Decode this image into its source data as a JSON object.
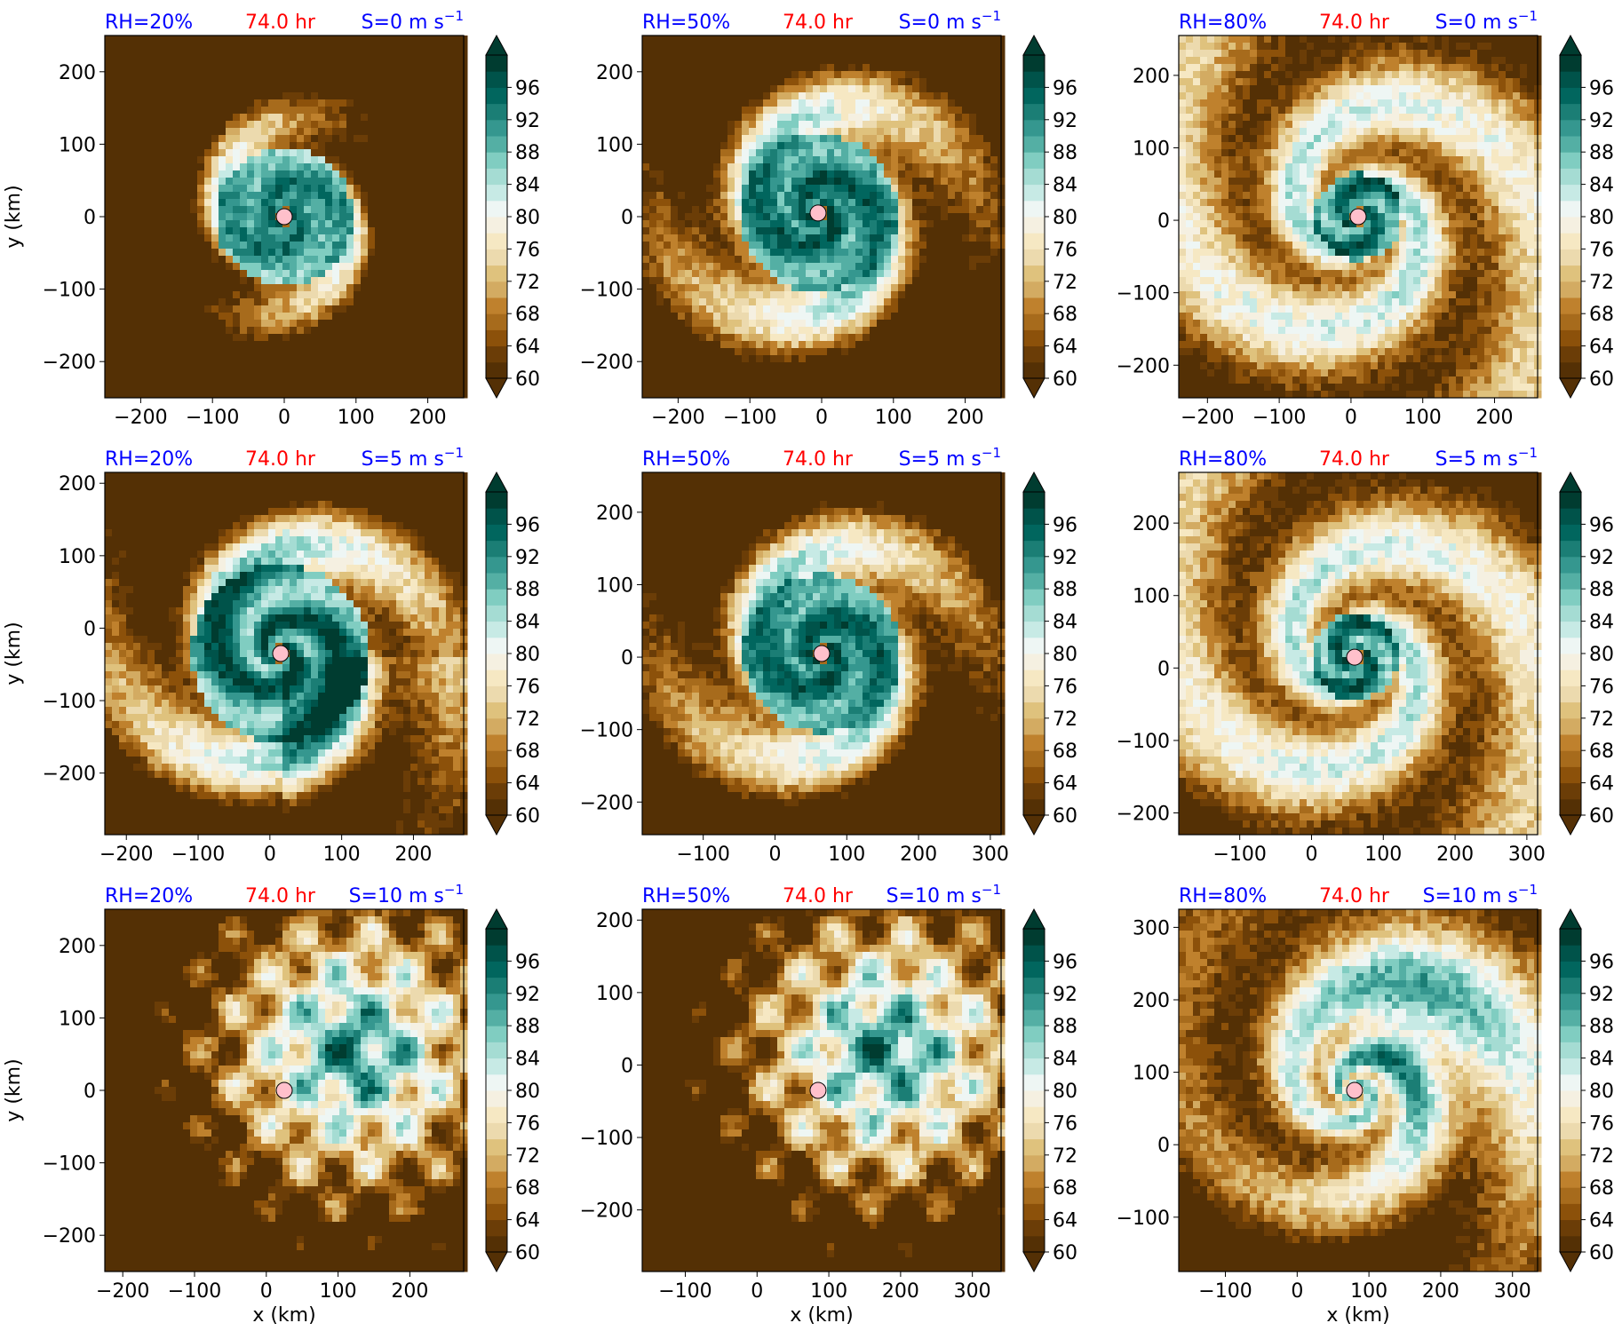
{
  "colors": {
    "rh_label": "#0000ff",
    "time_label": "#ff0000",
    "shear_label": "#0000ff",
    "center_marker": "#ffc0cb",
    "colormap": [
      "#543005",
      "#6b3d07",
      "#8c510a",
      "#a76b1c",
      "#bf812d",
      "#d3ab62",
      "#dfc27d",
      "#ecdaae",
      "#f6e8c3",
      "#f5f0e1",
      "#eef6f4",
      "#c7eae5",
      "#a5dcd3",
      "#80cdc1",
      "#54afa4",
      "#35978f",
      "#1b7e75",
      "#01665e",
      "#00534a",
      "#003c30"
    ]
  },
  "chart_data": [
    {
      "type": "heatmap",
      "rh": "RH=20%",
      "time": "74.0 hr",
      "shear_prefix": "S=0 m s",
      "shear_exp": "−1",
      "xticks": [
        "−200",
        "−100",
        "0",
        "100",
        "200"
      ],
      "yticks": [
        "200",
        "100",
        "0",
        "−100",
        "−200"
      ],
      "xlabel": "",
      "ylabel": "y (km)",
      "xlim": [
        -250,
        250
      ],
      "ylim": [
        -250,
        250
      ],
      "center": [
        0,
        0
      ],
      "style": "compact",
      "cbar": {
        "ticks": [
          "60",
          "64",
          "68",
          "72",
          "76",
          "80",
          "84",
          "88",
          "92",
          "96"
        ],
        "range": [
          60,
          100
        ],
        "extend": "both"
      }
    },
    {
      "type": "heatmap",
      "rh": "RH=50%",
      "time": "74.0 hr",
      "shear_prefix": "S=0 m s",
      "shear_exp": "−1",
      "xticks": [
        "−200",
        "−100",
        "0",
        "100",
        "200"
      ],
      "yticks": [
        "200",
        "100",
        "0",
        "−100",
        "−200"
      ],
      "xlabel": "",
      "ylabel": "",
      "xlim": [
        -250,
        250
      ],
      "ylim": [
        -250,
        250
      ],
      "center": [
        -5,
        5
      ],
      "style": "medium",
      "cbar": {
        "ticks": [
          "60",
          "64",
          "68",
          "72",
          "76",
          "80",
          "84",
          "88",
          "92",
          "96"
        ],
        "range": [
          60,
          100
        ],
        "extend": "both"
      }
    },
    {
      "type": "heatmap",
      "rh": "RH=80%",
      "time": "74.0 hr",
      "shear_prefix": "S=0 m s",
      "shear_exp": "−1",
      "xticks": [
        "−200",
        "−100",
        "0",
        "100",
        "200"
      ],
      "yticks": [
        "200",
        "100",
        "0",
        "−100",
        "−200"
      ],
      "xlabel": "",
      "ylabel": "",
      "xlim": [
        -240,
        260
      ],
      "ylim": [
        -245,
        255
      ],
      "center": [
        10,
        5
      ],
      "style": "wide",
      "cbar": {
        "ticks": [
          "60",
          "64",
          "68",
          "72",
          "76",
          "80",
          "84",
          "88",
          "92",
          "96"
        ],
        "range": [
          60,
          100
        ],
        "extend": "both"
      }
    },
    {
      "type": "heatmap",
      "rh": "RH=20%",
      "time": "74.0 hr",
      "shear_prefix": "S=5 m s",
      "shear_exp": "−1",
      "xticks": [
        "−200",
        "−100",
        "0",
        "100",
        "200"
      ],
      "yticks": [
        "200",
        "100",
        "0",
        "−100",
        "−200"
      ],
      "xlabel": "",
      "ylabel": "y (km)",
      "xlim": [
        -230,
        270
      ],
      "ylim": [
        -285,
        215
      ],
      "center": [
        15,
        -35
      ],
      "style": "sheared-medium",
      "cbar": {
        "ticks": [
          "60",
          "64",
          "68",
          "72",
          "76",
          "80",
          "84",
          "88",
          "92",
          "96"
        ],
        "range": [
          60,
          100
        ],
        "extend": "both"
      }
    },
    {
      "type": "heatmap",
      "rh": "RH=50%",
      "time": "74.0 hr",
      "shear_prefix": "S=5 m s",
      "shear_exp": "−1",
      "xticks": [
        "−100",
        "0",
        "100",
        "200",
        "300"
      ],
      "yticks": [
        "200",
        "100",
        "0",
        "−100",
        "−200"
      ],
      "xlabel": "",
      "ylabel": "",
      "xlim": [
        -185,
        315
      ],
      "ylim": [
        -245,
        255
      ],
      "center": [
        65,
        5
      ],
      "style": "medium",
      "cbar": {
        "ticks": [
          "60",
          "64",
          "68",
          "72",
          "76",
          "80",
          "84",
          "88",
          "92",
          "96"
        ],
        "range": [
          60,
          100
        ],
        "extend": "both"
      }
    },
    {
      "type": "heatmap",
      "rh": "RH=80%",
      "time": "74.0 hr",
      "shear_prefix": "S=5 m s",
      "shear_exp": "−1",
      "xticks": [
        "−100",
        "0",
        "100",
        "200",
        "300"
      ],
      "yticks": [
        "200",
        "100",
        "0",
        "−100",
        "−200"
      ],
      "xlabel": "",
      "ylabel": "",
      "xlim": [
        -185,
        315
      ],
      "ylim": [
        -230,
        270
      ],
      "center": [
        60,
        15
      ],
      "style": "wide",
      "cbar": {
        "ticks": [
          "60",
          "64",
          "68",
          "72",
          "76",
          "80",
          "84",
          "88",
          "92",
          "96"
        ],
        "range": [
          60,
          100
        ],
        "extend": "both"
      }
    },
    {
      "type": "heatmap",
      "rh": "RH=20%",
      "time": "74.0 hr",
      "shear_prefix": "S=10 m s",
      "shear_exp": "−1",
      "xticks": [
        "−200",
        "−100",
        "0",
        "100",
        "200"
      ],
      "yticks": [
        "200",
        "100",
        "0",
        "−100",
        "−200"
      ],
      "xlabel": "x (km)",
      "ylabel": "y (km)",
      "xlim": [
        -225,
        275
      ],
      "ylim": [
        -250,
        250
      ],
      "center": [
        25,
        0
      ],
      "style": "sheared-blob",
      "cbar": {
        "ticks": [
          "60",
          "64",
          "68",
          "72",
          "76",
          "80",
          "84",
          "88",
          "92",
          "96"
        ],
        "range": [
          60,
          100
        ],
        "extend": "both"
      }
    },
    {
      "type": "heatmap",
      "rh": "RH=50%",
      "time": "74.0 hr",
      "shear_prefix": "S=10 m s",
      "shear_exp": "−1",
      "xticks": [
        "−100",
        "0",
        "100",
        "200",
        "300"
      ],
      "yticks": [
        "200",
        "100",
        "0",
        "−100",
        "−200"
      ],
      "xlabel": "x (km)",
      "ylabel": "",
      "xlim": [
        -160,
        340
      ],
      "ylim": [
        -285,
        215
      ],
      "center": [
        85,
        -35
      ],
      "style": "sheared-blob",
      "cbar": {
        "ticks": [
          "60",
          "64",
          "68",
          "72",
          "76",
          "80",
          "84",
          "88",
          "92",
          "96"
        ],
        "range": [
          60,
          100
        ],
        "extend": "both"
      }
    },
    {
      "type": "heatmap",
      "rh": "RH=80%",
      "time": "74.0 hr",
      "shear_prefix": "S=10 m s",
      "shear_exp": "−1",
      "xticks": [
        "−100",
        "0",
        "100",
        "200",
        "300"
      ],
      "yticks": [
        "300",
        "200",
        "100",
        "0",
        "−100"
      ],
      "xlabel": "x (km)",
      "ylabel": "",
      "xlim": [
        -165,
        335
      ],
      "ylim": [
        -175,
        325
      ],
      "center": [
        80,
        75
      ],
      "style": "sheared-wide",
      "cbar": {
        "ticks": [
          "60",
          "64",
          "68",
          "72",
          "76",
          "80",
          "84",
          "88",
          "92",
          "96"
        ],
        "range": [
          60,
          100
        ],
        "extend": "both"
      }
    }
  ]
}
